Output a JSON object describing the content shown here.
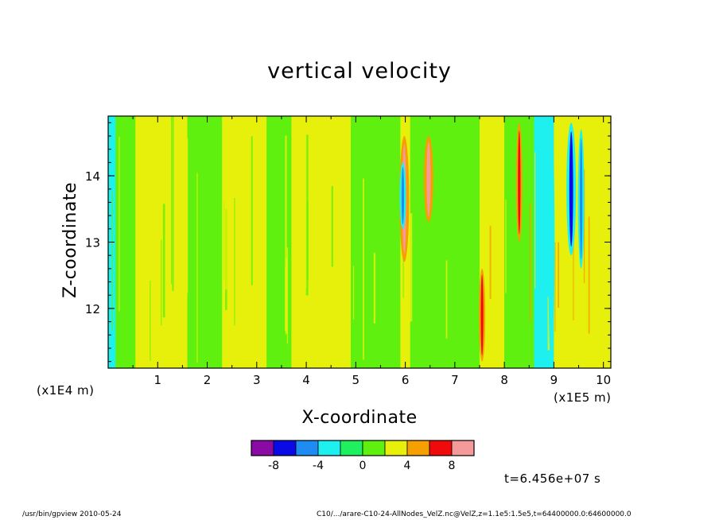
{
  "chart_data": {
    "type": "heatmap",
    "title": "vertical velocity",
    "xlabel": "X-coordinate",
    "ylabel": "Z-coordinate",
    "x_scale_label": "(x1E5 m)",
    "y_scale_label": "(x1E4 m)",
    "xlim": [
      0,
      10.15
    ],
    "ylim": [
      11.1,
      14.9
    ],
    "x_ticks": [
      "1",
      "2",
      "3",
      "4",
      "5",
      "6",
      "7",
      "8",
      "9",
      "10"
    ],
    "y_ticks": [
      "12",
      "13",
      "14"
    ],
    "colorbar": {
      "colors": [
        "#8a0aa6",
        "#0a0ae6",
        "#1e8cf0",
        "#1ef0f0",
        "#1ef060",
        "#60f010",
        "#e6f00a",
        "#f5a000",
        "#f00a0a",
        "#f59a9a"
      ],
      "tick_labels": [
        "-8",
        "-4",
        "0",
        "4",
        "8"
      ]
    },
    "color_regions_x": [
      {
        "x0": 0.0,
        "x1": 0.15,
        "value": -3
      },
      {
        "x0": 0.15,
        "x1": 0.55,
        "value": 0
      },
      {
        "x0": 0.55,
        "x1": 1.6,
        "value": 2
      },
      {
        "x0": 1.6,
        "x1": 2.3,
        "value": 0
      },
      {
        "x0": 2.3,
        "x1": 3.2,
        "value": 2
      },
      {
        "x0": 3.2,
        "x1": 3.7,
        "value": 0
      },
      {
        "x0": 3.7,
        "x1": 4.9,
        "value": 2
      },
      {
        "x0": 4.9,
        "x1": 5.9,
        "value": 0
      },
      {
        "x0": 5.9,
        "x1": 6.1,
        "value": 2
      },
      {
        "x0": 6.1,
        "x1": 7.5,
        "value": 0
      },
      {
        "x0": 7.5,
        "x1": 8.0,
        "value": 2
      },
      {
        "x0": 8.0,
        "x1": 8.6,
        "value": 0
      },
      {
        "x0": 8.6,
        "x1": 9.0,
        "value": -3
      },
      {
        "x0": 9.0,
        "x1": 10.15,
        "value": 2
      }
    ],
    "extreme_features": [
      {
        "x": 5.98,
        "z_range": [
          12.7,
          14.6
        ],
        "value": 9
      },
      {
        "x": 6.47,
        "z_range": [
          13.3,
          14.6
        ],
        "value": 8
      },
      {
        "x": 5.95,
        "z_range": [
          13.2,
          14.2
        ],
        "value": -6
      },
      {
        "x": 9.35,
        "z_range": [
          12.8,
          14.8
        ],
        "value": -7
      },
      {
        "x": 9.55,
        "z_range": [
          12.6,
          14.7
        ],
        "value": -6
      },
      {
        "x": 8.95,
        "z_range": [
          11.1,
          14.9
        ],
        "value": -3
      },
      {
        "x": 7.55,
        "z_range": [
          11.2,
          12.6
        ],
        "value": 6
      },
      {
        "x": 8.3,
        "z_range": [
          13.0,
          14.8
        ],
        "value": 6
      }
    ]
  },
  "annotations": {
    "timestamp": "t=6.456e+07 s",
    "footer_left": "/usr/bin/gpview   2010-05-24",
    "footer_right": "C10/.../arare-C10-24-AllNodes_VelZ.nc@VelZ,z=1.1e5:1.5e5,t=64400000.0:64600000.0"
  }
}
